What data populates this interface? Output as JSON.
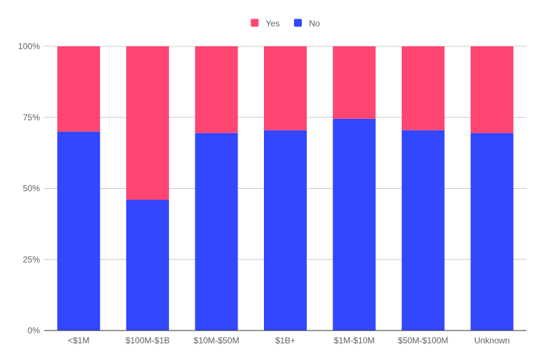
{
  "chart_data": {
    "type": "bar",
    "stacked": true,
    "percent_stacked": true,
    "categories": [
      "<$1M",
      "$100M-$1B",
      "$10M-$50M",
      "$1B+",
      "$1M-$10M",
      "$50M-$100M",
      "Unknown"
    ],
    "series": [
      {
        "name": "No",
        "color": "#3347ff",
        "values": [
          70,
          46,
          69.5,
          70.5,
          74.5,
          70.5,
          69.5
        ]
      },
      {
        "name": "Yes",
        "color": "#ff4571",
        "values": [
          30,
          54,
          30.5,
          29.5,
          25.5,
          29.5,
          30.5
        ]
      }
    ],
    "legend": {
      "position": "top",
      "items": [
        {
          "name": "Yes",
          "color": "#ff4571"
        },
        {
          "name": "No",
          "color": "#3347ff"
        }
      ]
    },
    "y_ticks": [
      "0%",
      "25%",
      "50%",
      "75%",
      "100%"
    ],
    "ylim": [
      0,
      100
    ],
    "grid": true,
    "gridline_color": "#cccccc",
    "axis_color": "#333333"
  }
}
